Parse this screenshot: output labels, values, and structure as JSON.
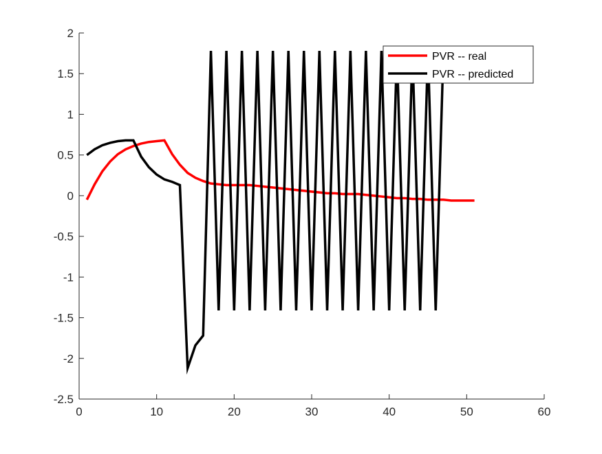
{
  "chart_data": {
    "type": "line",
    "xlim": [
      0,
      60
    ],
    "ylim": [
      -2.5,
      2
    ],
    "xticks": [
      "0",
      "10",
      "20",
      "30",
      "40",
      "50",
      "60"
    ],
    "yticks": [
      "2",
      "1.5",
      "1",
      "0.5",
      "0",
      "-0.5",
      "-1",
      "-1.5",
      "-2",
      "-2.5"
    ],
    "xtick_values": [
      0,
      10,
      20,
      30,
      40,
      50,
      60
    ],
    "ytick_values": [
      2,
      1.5,
      1,
      0.5,
      0,
      -0.5,
      -1,
      -1.5,
      -2,
      -2.5
    ],
    "grid": false,
    "legend_position": "top-right",
    "series": [
      {
        "name": "PVR -- real",
        "color": "#ff0000",
        "x": [
          1,
          2,
          3,
          4,
          5,
          6,
          7,
          8,
          9,
          10,
          11,
          12,
          13,
          14,
          15,
          16,
          17,
          18,
          19,
          20,
          21,
          22,
          23,
          24,
          25,
          26,
          27,
          28,
          29,
          30,
          31,
          32,
          33,
          34,
          35,
          36,
          37,
          38,
          39,
          40,
          41,
          42,
          43,
          44,
          45,
          46,
          47,
          48,
          49,
          50,
          51
        ],
        "y": [
          -0.05,
          0.14,
          0.3,
          0.42,
          0.51,
          0.57,
          0.61,
          0.64,
          0.66,
          0.67,
          0.68,
          0.51,
          0.38,
          0.28,
          0.22,
          0.18,
          0.15,
          0.14,
          0.13,
          0.13,
          0.13,
          0.13,
          0.12,
          0.11,
          0.1,
          0.09,
          0.08,
          0.07,
          0.06,
          0.05,
          0.04,
          0.03,
          0.03,
          0.02,
          0.02,
          0.02,
          0.01,
          0.0,
          -0.01,
          -0.02,
          -0.03,
          -0.03,
          -0.04,
          -0.04,
          -0.05,
          -0.05,
          -0.05,
          -0.06,
          -0.06,
          -0.06,
          -0.06
        ]
      },
      {
        "name": "PVR -- predicted",
        "color": "#000000",
        "x": [
          1,
          2,
          3,
          4,
          5,
          6,
          7,
          8,
          9,
          10,
          11,
          12,
          13,
          14,
          15,
          16,
          17,
          18,
          19,
          20,
          21,
          22,
          23,
          24,
          25,
          26,
          27,
          28,
          29,
          30,
          31,
          32,
          33,
          34,
          35,
          36,
          37,
          38,
          39,
          40,
          41,
          42,
          43,
          44,
          45,
          46,
          47
        ],
        "y": [
          0.5,
          0.57,
          0.62,
          0.65,
          0.67,
          0.68,
          0.68,
          0.48,
          0.35,
          0.26,
          0.2,
          0.17,
          0.13,
          -2.12,
          -1.84,
          -1.72,
          1.78,
          -1.41,
          1.78,
          -1.41,
          1.78,
          -1.41,
          1.78,
          -1.41,
          1.78,
          -1.41,
          1.78,
          -1.41,
          1.78,
          -1.41,
          1.78,
          -1.41,
          1.78,
          -1.41,
          1.78,
          -1.41,
          1.78,
          -1.41,
          1.78,
          -1.41,
          1.78,
          -1.41,
          1.78,
          -1.41,
          1.78,
          -1.41,
          1.78
        ]
      }
    ]
  }
}
